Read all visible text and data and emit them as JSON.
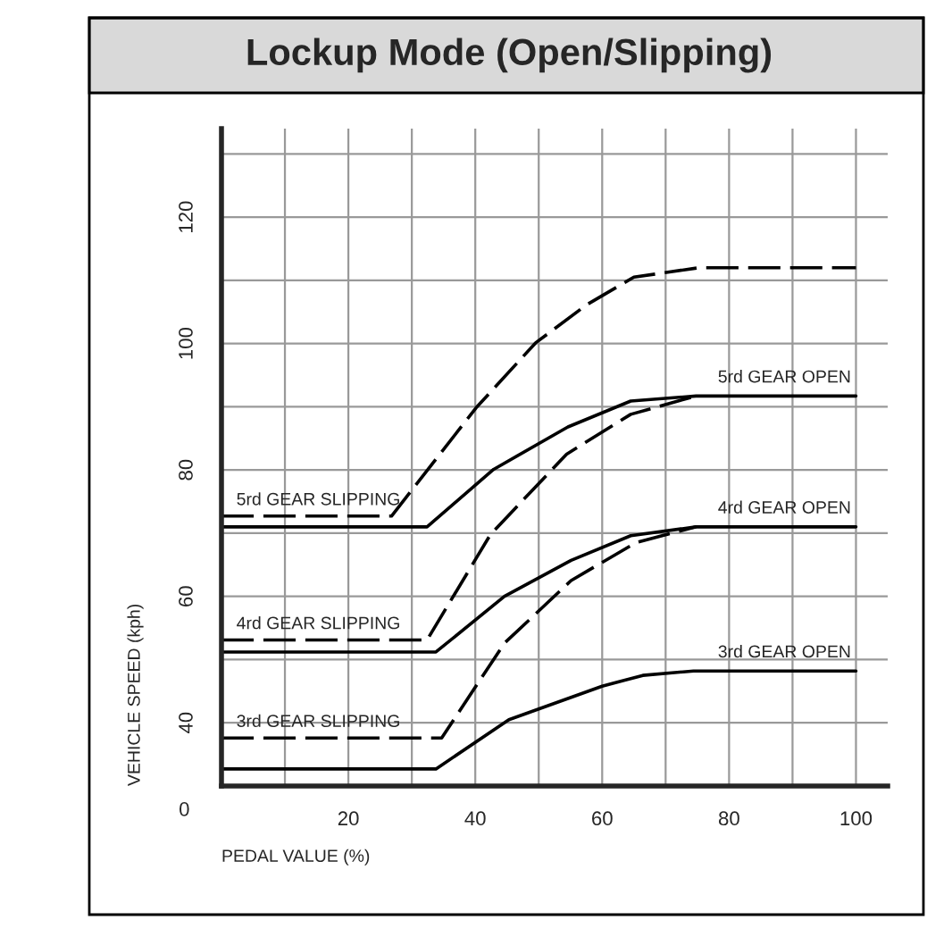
{
  "chart_data": {
    "type": "line",
    "title": "Lockup Mode (Open/Slipping)",
    "xlabel": "PEDAL VALUE (%)",
    "ylabel": "VEHICLE SPEED (kph)",
    "xlim": [
      0,
      105
    ],
    "ylim": [
      30,
      134
    ],
    "xticks": [
      {
        "value": 10,
        "label": null
      },
      20,
      {
        "value": 30,
        "label": null
      },
      40,
      {
        "value": 50,
        "label": null
      },
      60,
      {
        "value": 70,
        "label": null
      },
      80,
      {
        "value": 90,
        "label": null
      },
      100
    ],
    "yticks": [
      {
        "value": 30,
        "label": null
      },
      40,
      {
        "value": 50,
        "label": null
      },
      60,
      {
        "value": 70,
        "label": null
      },
      80,
      {
        "value": 90,
        "label": null
      },
      100,
      {
        "value": 110,
        "label": null
      },
      120,
      {
        "value": 130,
        "label": null
      }
    ],
    "grid": true,
    "marker": "none",
    "series": [
      {
        "name": "3rd GEAR OPEN",
        "color": "#000000",
        "line_style": "solid",
        "x": [
          0,
          33.8,
          45.3,
          60,
          66.4,
          74.4,
          100
        ],
        "values": [
          32.7,
          32.7,
          40.5,
          45.8,
          47.5,
          48.2,
          48.2
        ]
      },
      {
        "name": "3rd GEAR SLIPPING",
        "color": "#000000",
        "line_style": "dashed",
        "x": [
          0,
          34.7,
          44.6,
          55.1,
          65.3,
          74.8
        ],
        "values": [
          37.6,
          37.6,
          52.6,
          62.5,
          68.5,
          71
        ]
      },
      {
        "name": "4rd GEAR OPEN",
        "color": "#000000",
        "line_style": "solid",
        "x": [
          0,
          33.8,
          44.6,
          55.1,
          64.5,
          74.8,
          100
        ],
        "values": [
          51.2,
          51.2,
          60,
          65.7,
          69.6,
          71,
          71
        ]
      },
      {
        "name": "4rd GEAR SLIPPING",
        "color": "#000000",
        "line_style": "dashed",
        "x": [
          0,
          32.4,
          42.4,
          54.4,
          64.5,
          74.8
        ],
        "values": [
          53.1,
          53.1,
          69.8,
          82.5,
          88.8,
          91.7
        ]
      },
      {
        "name": "5rd GEAR OPEN",
        "color": "#000000",
        "line_style": "solid",
        "x": [
          0,
          32.4,
          42.9,
          54.6,
          64.5,
          74.8,
          100
        ],
        "values": [
          71,
          71,
          80.1,
          86.8,
          90.9,
          91.7,
          91.7
        ]
      },
      {
        "name": "5rd GEAR SLIPPING",
        "color": "#000000",
        "line_style": "dashed",
        "x": [
          0,
          26.8,
          40.1,
          49.5,
          57.5,
          65,
          75.3,
          100
        ],
        "values": [
          72.7,
          72.7,
          89.8,
          100.1,
          106.1,
          110.5,
          112,
          112
        ]
      }
    ],
    "annotations": [
      "0"
    ]
  }
}
